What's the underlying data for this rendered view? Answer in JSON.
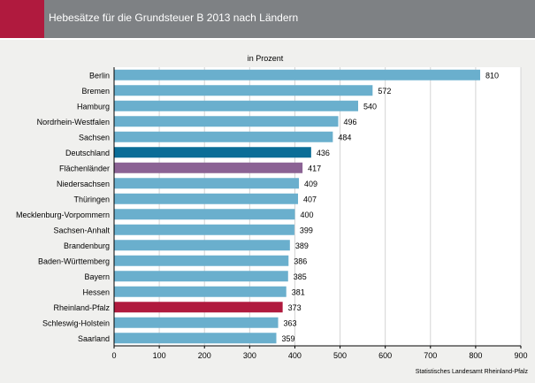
{
  "header": {
    "title": "Hebesätze für die Grundsteuer B 2013 nach Ländern"
  },
  "source": "Statistisches Landesamt Rheinland-Pfalz",
  "colors": {
    "header_bg": "#7e8184",
    "accent": "#b01a3e",
    "bar_default": "#6aafcd",
    "bar_deutschland": "#0b6d97",
    "bar_flaechenlaender": "#8b6294",
    "bar_rheinland_pfalz": "#b01a3e"
  },
  "chart_data": {
    "type": "bar",
    "orientation": "horizontal",
    "title": "",
    "subtitle": "in Prozent",
    "categories": [
      "Berlin",
      "Bremen",
      "Hamburg",
      "Nordrhein-Westfalen",
      "Sachsen",
      "Deutschland",
      "Flächenländer",
      "Niedersachsen",
      "Thüringen",
      "Mecklenburg-Vorpommern",
      "Sachsen-Anhalt",
      "Brandenburg",
      "Baden-Württemberg",
      "Bayern",
      "Hessen",
      "Rheinland-Pfalz",
      "Schleswig-Holstein",
      "Saarland"
    ],
    "values": [
      810,
      572,
      540,
      496,
      484,
      436,
      417,
      409,
      407,
      400,
      399,
      389,
      386,
      385,
      381,
      373,
      363,
      359
    ],
    "highlight": {
      "Deutschland": "#0b6d97",
      "Flächenländer": "#8b6294",
      "Rheinland-Pfalz": "#b01a3e"
    },
    "xlim": [
      0,
      900
    ],
    "xticks": [
      0,
      100,
      200,
      300,
      400,
      500,
      600,
      700,
      800,
      900
    ],
    "grid": true,
    "legend": "none"
  }
}
